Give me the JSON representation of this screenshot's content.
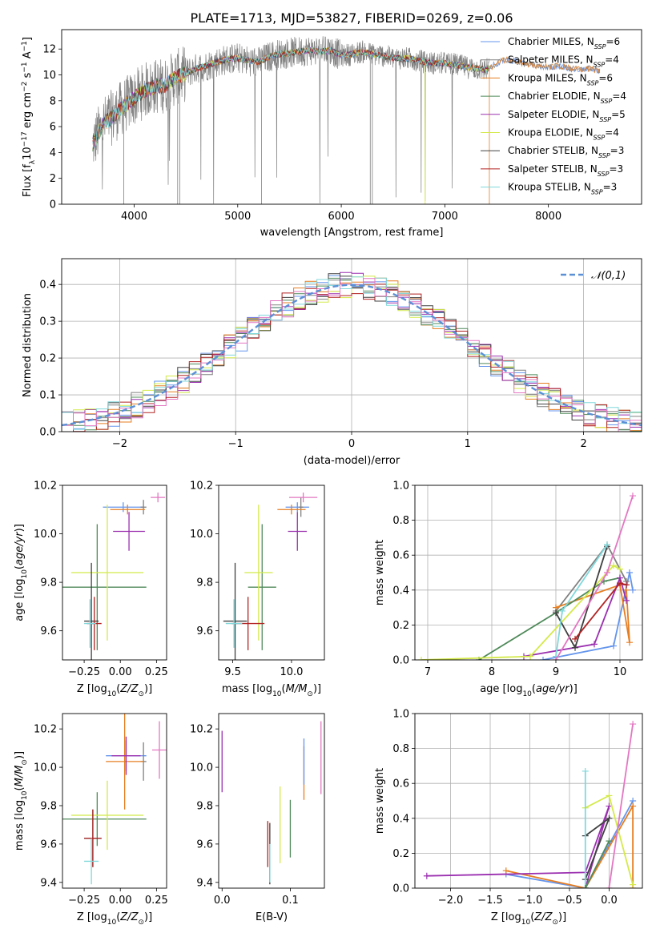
{
  "colors": {
    "chabrier_miles": "#6495ed",
    "salpeter_miles": "#808080",
    "kroupa_miles": "#e67e22",
    "chabrier_elodie": "#4f8a5a",
    "salpeter_elodie": "#9b30b0",
    "kroupa_elodie": "#d4ea4a",
    "chabrier_stelib": "#404040",
    "salpeter_stelib": "#b22222",
    "kroupa_stelib": "#80d8dc",
    "pink": "#e377c2",
    "normal": "#5b8fd6"
  },
  "chart_data": [
    {
      "id": "spectrum",
      "type": "line",
      "title": "PLATE=1713, MJD=53827, FIBERID=0269, z=0.06",
      "xlabel": "wavelength [Angstrom, rest frame]",
      "ylabel_parts": [
        "Flux [f",
        "λ",
        "10",
        "−17",
        " erg cm",
        "−2",
        " s",
        "−1",
        " A",
        "−1",
        "]"
      ],
      "xlim": [
        3300,
        8900
      ],
      "ylim": [
        0,
        13.5
      ],
      "xticks": [
        4000,
        5000,
        6000,
        7000,
        8000
      ],
      "yticks": [
        0,
        2,
        4,
        6,
        8,
        10,
        12
      ],
      "continuum": [
        [
          3600,
          4.6
        ],
        [
          3700,
          6.2
        ],
        [
          3800,
          6.8
        ],
        [
          3900,
          7.6
        ],
        [
          4000,
          8.2
        ],
        [
          4100,
          8.8
        ],
        [
          4200,
          9.1
        ],
        [
          4300,
          9.2
        ],
        [
          4400,
          9.8
        ],
        [
          4500,
          10.1
        ],
        [
          4600,
          10.5
        ],
        [
          4700,
          10.7
        ],
        [
          4800,
          11.0
        ],
        [
          4900,
          11.2
        ],
        [
          5000,
          11.3
        ],
        [
          5100,
          11.1
        ],
        [
          5200,
          11.0
        ],
        [
          5300,
          11.4
        ],
        [
          5400,
          11.6
        ],
        [
          5500,
          11.7
        ],
        [
          5600,
          11.8
        ],
        [
          5700,
          11.9
        ],
        [
          5800,
          11.8
        ],
        [
          5900,
          11.9
        ],
        [
          6000,
          11.5
        ],
        [
          6100,
          11.6
        ],
        [
          6200,
          11.8
        ],
        [
          6300,
          11.6
        ],
        [
          6400,
          11.5
        ],
        [
          6500,
          11.3
        ],
        [
          6600,
          11.3
        ],
        [
          6700,
          11.2
        ],
        [
          6800,
          11.0
        ],
        [
          6900,
          10.9
        ],
        [
          7000,
          10.9
        ],
        [
          7100,
          10.8
        ],
        [
          7200,
          10.6
        ],
        [
          7300,
          10.5
        ],
        [
          7400,
          10.4
        ],
        [
          7500,
          10.9
        ],
        [
          7600,
          11.2
        ],
        [
          7700,
          11.0
        ],
        [
          7800,
          10.8
        ],
        [
          7900,
          10.7
        ],
        [
          8000,
          10.6
        ],
        [
          8100,
          10.7
        ],
        [
          8200,
          10.5
        ],
        [
          8300,
          10.4
        ],
        [
          8400,
          10.5
        ],
        [
          8500,
          10.3
        ]
      ],
      "legend": [
        {
          "name": "Chabrier MILES, N",
          "sub": "SSP",
          "eq": "=6",
          "color": "chabrier_miles"
        },
        {
          "name": "Salpeter MILES, N",
          "sub": "SSP",
          "eq": "=4",
          "color": "salpeter_miles"
        },
        {
          "name": "Kroupa MILES, N",
          "sub": "SSP",
          "eq": "=6",
          "color": "kroupa_miles"
        },
        {
          "name": "Chabrier ELODIE, N",
          "sub": "SSP",
          "eq": "=4",
          "color": "chabrier_elodie"
        },
        {
          "name": "Salpeter ELODIE, N",
          "sub": "SSP",
          "eq": "=5",
          "color": "salpeter_elodie"
        },
        {
          "name": "Kroupa ELODIE, N",
          "sub": "SSP",
          "eq": "=4",
          "color": "kroupa_elodie"
        },
        {
          "name": "Chabrier STELIB, N",
          "sub": "SSP",
          "eq": "=3",
          "color": "chabrier_stelib"
        },
        {
          "name": "Salpeter STELIB, N",
          "sub": "SSP",
          "eq": "=3",
          "color": "salpeter_stelib"
        },
        {
          "name": "Kroupa STELIB, N",
          "sub": "SSP",
          "eq": "=3",
          "color": "kroupa_stelib"
        }
      ],
      "legend_placement": "upper-right"
    },
    {
      "id": "residuals",
      "type": "histogram",
      "xlabel": "(data-model)/error",
      "ylabel": "Normed distribution",
      "xlim": [
        -2.5,
        2.5
      ],
      "ylim": [
        0,
        0.47
      ],
      "xticks": [
        -2,
        -1,
        0,
        1,
        2
      ],
      "yticks": [
        0.0,
        0.1,
        0.2,
        0.3,
        0.4
      ],
      "grid": true,
      "legend": [
        {
          "name": "𝒩(0,1)",
          "color": "normal",
          "style": "dashed"
        }
      ],
      "legend_placement": "upper-right"
    },
    {
      "id": "age_vs_Z",
      "type": "errorbar",
      "xlabel_parts": [
        "Z [log",
        "10",
        "(Z/Z",
        "⊙",
        ")]"
      ],
      "ylabel_parts": [
        "age  [log",
        "10",
        "(age/yr)]"
      ],
      "xlim": [
        -0.4,
        0.32
      ],
      "ylim": [
        9.48,
        10.2
      ],
      "xticks": [
        -0.25,
        0.0,
        0.25
      ],
      "yticks": [
        9.6,
        9.8,
        10.0,
        10.2
      ],
      "points": [
        {
          "x": 0.02,
          "y": 10.11,
          "xerr": 0.14,
          "yerr": 0.02,
          "color": "chabrier_miles"
        },
        {
          "x": 0.16,
          "y": 10.11,
          "xerr": 0.02,
          "yerr": 0.03,
          "color": "salpeter_miles"
        },
        {
          "x": 0.05,
          "y": 10.1,
          "xerr": 0.12,
          "yerr": 0.02,
          "color": "kroupa_miles"
        },
        {
          "x": -0.16,
          "y": 9.78,
          "xerr": 0.34,
          "yerr": 0.26,
          "color": "chabrier_elodie"
        },
        {
          "x": 0.06,
          "y": 10.01,
          "xerr": 0.11,
          "yerr": 0.08,
          "color": "salpeter_elodie"
        },
        {
          "x": -0.09,
          "y": 9.84,
          "xerr": 0.25,
          "yerr": 0.28,
          "color": "kroupa_elodie"
        },
        {
          "x": -0.2,
          "y": 9.64,
          "xerr": 0.05,
          "yerr": 0.24,
          "color": "chabrier_stelib"
        },
        {
          "x": -0.18,
          "y": 9.63,
          "xerr": 0.05,
          "yerr": 0.11,
          "color": "salpeter_stelib"
        },
        {
          "x": -0.21,
          "y": 9.63,
          "xerr": 0.04,
          "yerr": 0.1,
          "color": "kroupa_stelib"
        },
        {
          "x": 0.26,
          "y": 10.15,
          "xerr": 0.05,
          "yerr": 0.02,
          "color": "pink"
        }
      ]
    },
    {
      "id": "age_vs_mass",
      "type": "errorbar",
      "xlabel_parts": [
        "mass [log",
        "10",
        "(M/M",
        "⊙",
        ")]"
      ],
      "xlim": [
        9.38,
        10.28
      ],
      "ylim": [
        9.48,
        10.2
      ],
      "xticks": [
        9.5,
        10.0
      ],
      "yticks": [
        9.6,
        9.8,
        10.0,
        10.2
      ],
      "points": [
        {
          "x": 10.05,
          "y": 10.11,
          "xerr": 0.1,
          "yerr": 0.02,
          "color": "chabrier_miles"
        },
        {
          "x": 10.08,
          "y": 10.11,
          "xerr": 0.02,
          "yerr": 0.04,
          "color": "salpeter_miles"
        },
        {
          "x": 10.0,
          "y": 10.1,
          "xerr": 0.12,
          "yerr": 0.02,
          "color": "kroupa_miles"
        },
        {
          "x": 9.75,
          "y": 9.78,
          "xerr": 0.12,
          "yerr": 0.26,
          "color": "chabrier_elodie"
        },
        {
          "x": 10.05,
          "y": 10.01,
          "xerr": 0.08,
          "yerr": 0.08,
          "color": "salpeter_elodie"
        },
        {
          "x": 9.72,
          "y": 9.84,
          "xerr": 0.12,
          "yerr": 0.28,
          "color": "kroupa_elodie"
        },
        {
          "x": 9.52,
          "y": 9.64,
          "xerr": 0.1,
          "yerr": 0.24,
          "color": "chabrier_stelib"
        },
        {
          "x": 9.63,
          "y": 9.63,
          "xerr": 0.14,
          "yerr": 0.11,
          "color": "salpeter_stelib"
        },
        {
          "x": 9.51,
          "y": 9.63,
          "xerr": 0.07,
          "yerr": 0.1,
          "color": "kroupa_stelib"
        },
        {
          "x": 10.1,
          "y": 10.15,
          "xerr": 0.12,
          "yerr": 0.02,
          "color": "pink"
        }
      ]
    },
    {
      "id": "mw_vs_age",
      "type": "line",
      "xlabel_parts": [
        "age  [log",
        "10",
        "(age/yr)]"
      ],
      "ylabel": "mass weight",
      "xlim": [
        6.8,
        10.35
      ],
      "ylim": [
        0,
        1.0
      ],
      "xticks": [
        7,
        8,
        9,
        10
      ],
      "yticks": [
        0.0,
        0.2,
        0.4,
        0.6,
        0.8,
        1.0
      ],
      "grid": true,
      "series": [
        {
          "color": "chabrier_miles",
          "x": [
            8.8,
            9.9,
            10.15,
            10.2
          ],
          "y": [
            0.0,
            0.08,
            0.5,
            0.4
          ]
        },
        {
          "color": "salpeter_miles",
          "x": [
            9.0,
            9.8,
            10.1
          ],
          "y": [
            0.28,
            0.66,
            0.45
          ]
        },
        {
          "color": "kroupa_miles",
          "x": [
            9.0,
            10.0,
            10.15,
            10.1
          ],
          "y": [
            0.3,
            0.43,
            0.1,
            0.4
          ]
        },
        {
          "color": "chabrier_elodie",
          "x": [
            7.8,
            9.0,
            9.75,
            10.0
          ],
          "y": [
            0.0,
            0.27,
            0.45,
            0.47
          ]
        },
        {
          "color": "salpeter_elodie",
          "x": [
            8.5,
            9.6,
            10.0,
            10.1
          ],
          "y": [
            0.02,
            0.09,
            0.47,
            0.34
          ]
        },
        {
          "color": "kroupa_elodie",
          "x": [
            6.9,
            8.6,
            9.9,
            10.0
          ],
          "y": [
            0.0,
            0.02,
            0.54,
            0.52
          ]
        },
        {
          "color": "chabrier_stelib",
          "x": [
            9.0,
            9.3,
            9.8
          ],
          "y": [
            0.27,
            0.07,
            0.65
          ]
        },
        {
          "color": "salpeter_stelib",
          "x": [
            9.3,
            10.0,
            10.1
          ],
          "y": [
            0.12,
            0.44,
            0.43
          ]
        },
        {
          "color": "kroupa_stelib",
          "x": [
            9.0,
            9.1,
            9.8
          ],
          "y": [
            0.02,
            0.28,
            0.66
          ]
        },
        {
          "color": "pink",
          "x": [
            9.0,
            9.8,
            10.2
          ],
          "y": [
            0.0,
            0.5,
            0.94
          ]
        }
      ]
    },
    {
      "id": "mass_vs_Z",
      "type": "errorbar",
      "xlabel_parts": [
        "Z [log",
        "10",
        "(Z/Z",
        "⊙",
        ")]"
      ],
      "ylabel_parts": [
        "mass [log",
        "10",
        "(M/M",
        "⊙",
        ")]"
      ],
      "xlim": [
        -0.4,
        0.32
      ],
      "ylim": [
        9.37,
        10.28
      ],
      "xticks": [
        -0.25,
        0.0,
        0.25
      ],
      "yticks": [
        9.4,
        9.6,
        9.8,
        10.0,
        10.2
      ],
      "points": [
        {
          "x": 0.04,
          "y": 10.06,
          "xerr": 0.14,
          "yerr": 0.08,
          "color": "chabrier_miles"
        },
        {
          "x": 0.16,
          "y": 10.03,
          "xerr": 0.02,
          "yerr": 0.1,
          "color": "salpeter_miles"
        },
        {
          "x": 0.03,
          "y": 10.03,
          "xerr": 0.13,
          "yerr": 0.25,
          "color": "kroupa_miles"
        },
        {
          "x": -0.16,
          "y": 9.73,
          "xerr": 0.34,
          "yerr": 0.14,
          "color": "chabrier_elodie"
        },
        {
          "x": 0.04,
          "y": 10.06,
          "xerr": 0.1,
          "yerr": 0.1,
          "color": "salpeter_elodie"
        },
        {
          "x": -0.09,
          "y": 9.75,
          "xerr": 0.25,
          "yerr": 0.18,
          "color": "kroupa_elodie"
        },
        {
          "x": -0.19,
          "y": 9.63,
          "xerr": 0.06,
          "yerr": 0.15,
          "color": "chabrier_stelib"
        },
        {
          "x": -0.19,
          "y": 9.63,
          "xerr": 0.06,
          "yerr": 0.15,
          "color": "salpeter_stelib"
        },
        {
          "x": -0.2,
          "y": 9.51,
          "xerr": 0.05,
          "yerr": 0.12,
          "color": "kroupa_stelib"
        },
        {
          "x": 0.27,
          "y": 10.09,
          "xerr": 0.05,
          "yerr": 0.15,
          "color": "pink"
        }
      ]
    },
    {
      "id": "mass_vs_ebv",
      "type": "errorbar",
      "xlabel": "E(B-V)",
      "xlim": [
        -0.005,
        0.15
      ],
      "ylim": [
        9.37,
        10.28
      ],
      "xticks": [
        0.0,
        0.1
      ],
      "yticks": [
        9.4,
        9.6,
        9.8,
        10.0,
        10.2
      ],
      "points": [
        {
          "x": 0.0,
          "y": 10.03,
          "xerr": 0.0,
          "yerr": 0.16,
          "color": "salpeter_elodie"
        },
        {
          "x": 0.07,
          "y": 9.55,
          "xerr": 0.0,
          "yerr": 0.16,
          "color": "chabrier_stelib"
        },
        {
          "x": 0.067,
          "y": 9.6,
          "xerr": 0.0,
          "yerr": 0.12,
          "color": "salpeter_stelib"
        },
        {
          "x": 0.085,
          "y": 9.7,
          "xerr": 0.0,
          "yerr": 0.2,
          "color": "kroupa_elodie"
        },
        {
          "x": 0.1,
          "y": 9.68,
          "xerr": 0.0,
          "yerr": 0.15,
          "color": "chabrier_elodie"
        },
        {
          "x": 0.12,
          "y": 9.97,
          "xerr": 0.0,
          "yerr": 0.14,
          "color": "kroupa_miles"
        },
        {
          "x": 0.12,
          "y": 10.03,
          "xerr": 0.0,
          "yerr": 0.12,
          "color": "chabrier_miles"
        },
        {
          "x": 0.145,
          "y": 10.05,
          "xerr": 0.0,
          "yerr": 0.19,
          "color": "pink"
        },
        {
          "x": 0.07,
          "y": 9.5,
          "xerr": 0.0,
          "yerr": 0.1,
          "color": "kroupa_stelib"
        }
      ]
    },
    {
      "id": "mw_vs_Z",
      "type": "line",
      "xlabel_parts": [
        "Z [log",
        "10",
        "(Z/Z",
        "⊙",
        ")]"
      ],
      "ylabel": "mass weight",
      "xlim": [
        -2.45,
        0.42
      ],
      "ylim": [
        0,
        1.0
      ],
      "xticks": [
        -2.0,
        -1.5,
        -1.0,
        -0.5,
        0.0
      ],
      "yticks": [
        0.0,
        0.2,
        0.4,
        0.6,
        0.8,
        1.0
      ],
      "grid": true,
      "series": [
        {
          "color": "chabrier_miles",
          "x": [
            -1.3,
            -0.3,
            0.3
          ],
          "y": [
            0.08,
            0.0,
            0.5
          ]
        },
        {
          "color": "kroupa_miles",
          "x": [
            -1.3,
            -0.3,
            0.3,
            0.3
          ],
          "y": [
            0.1,
            0.0,
            0.47,
            0.0
          ]
        },
        {
          "color": "salpeter_elodie",
          "x": [
            -2.3,
            -0.3,
            0.0,
            -0.3
          ],
          "y": [
            0.07,
            0.09,
            0.47,
            0.0
          ]
        },
        {
          "color": "kroupa_elodie",
          "x": [
            -0.3,
            0.0,
            0.3
          ],
          "y": [
            0.46,
            0.53,
            0.02
          ]
        },
        {
          "color": "chabrier_stelib",
          "x": [
            -0.3,
            0.0,
            -0.3
          ],
          "y": [
            0.05,
            0.4,
            0.3
          ]
        },
        {
          "color": "kroupa_stelib",
          "x": [
            -0.3,
            -0.3
          ],
          "y": [
            0.0,
            0.67
          ]
        },
        {
          "color": "pink",
          "x": [
            0.0,
            0.3
          ],
          "y": [
            0.0,
            0.94
          ]
        },
        {
          "color": "chabrier_elodie",
          "x": [
            -0.3,
            0.0
          ],
          "y": [
            0.0,
            0.27
          ]
        }
      ]
    }
  ]
}
